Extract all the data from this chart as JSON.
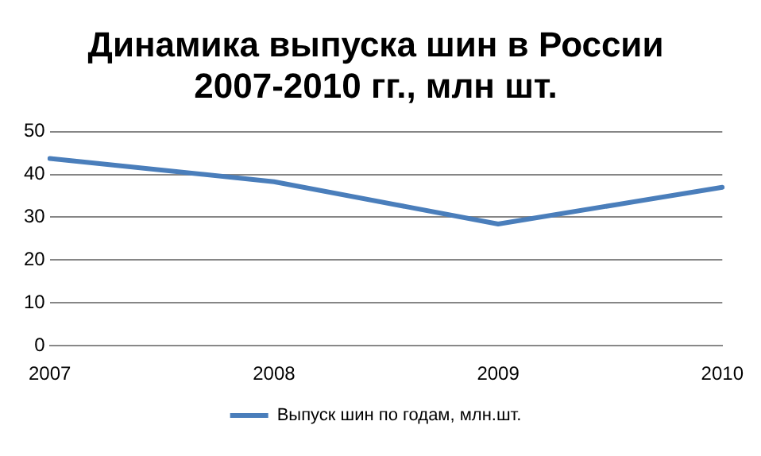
{
  "chart_data": {
    "type": "line",
    "title": "Динамика выпуска шин в России 2007-2010 гг., млн шт.",
    "categories": [
      "2007",
      "2008",
      "2009",
      "2010"
    ],
    "series": [
      {
        "name": "Выпуск шин по годам, млн.шт.",
        "color": "#4a7ebb",
        "values": [
          43.7,
          38.3,
          28.4,
          37
        ]
      }
    ],
    "ylim": [
      0,
      50
    ],
    "yticks": [
      0,
      10,
      20,
      30,
      40,
      50
    ],
    "grid": "y",
    "legend": "bottom",
    "marker": "none"
  }
}
